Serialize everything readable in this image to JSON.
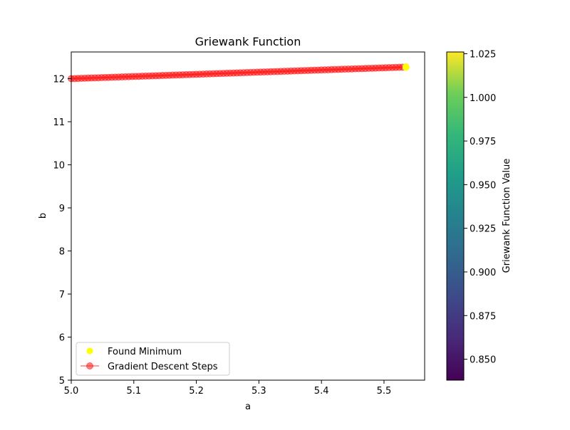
{
  "chart_data": {
    "type": "scatter",
    "title": "Griewank Function",
    "xlabel": "a",
    "ylabel": "b",
    "xlim": [
      5.0,
      5.565
    ],
    "ylim": [
      5.0,
      12.62
    ],
    "xticks": [
      5.0,
      5.1,
      5.2,
      5.3,
      5.4,
      5.5
    ],
    "xtick_labels": [
      "5.0",
      "5.1",
      "5.2",
      "5.3",
      "5.4",
      "5.5"
    ],
    "yticks": [
      5,
      6,
      7,
      8,
      9,
      10,
      11,
      12
    ],
    "ytick_labels": [
      "5",
      "6",
      "7",
      "8",
      "9",
      "10",
      "11",
      "12"
    ],
    "grid": false,
    "legend_position": "lower-left",
    "series": [
      {
        "name": "Gradient Descent Steps",
        "kind": "line-marker",
        "color": "#ff0000",
        "alpha": 0.5,
        "start": [
          5.0,
          12.0
        ],
        "end": [
          5.535,
          12.27
        ],
        "num_points": 100
      },
      {
        "name": "Found Minimum",
        "kind": "scatter",
        "color": "#ffff00",
        "points": [
          [
            5.535,
            12.27
          ]
        ]
      }
    ],
    "colorbar": {
      "label": "Griewank Function Value",
      "min": 0.838,
      "max": 1.026,
      "colormap": "viridis",
      "ticks": [
        0.85,
        0.875,
        0.9,
        0.925,
        0.95,
        0.975,
        1.0,
        1.025
      ],
      "tick_labels": [
        "0.850",
        "0.875",
        "0.900",
        "0.925",
        "0.950",
        "0.975",
        "1.000",
        "1.025"
      ]
    }
  }
}
